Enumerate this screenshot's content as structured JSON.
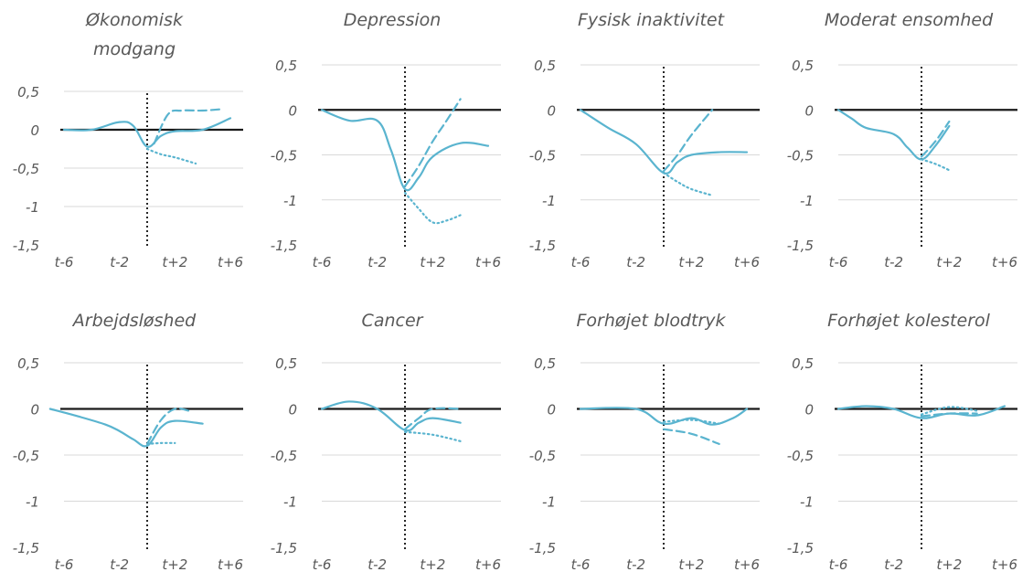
{
  "chart_data": [
    {
      "type": "line",
      "title": [
        "Økonomisk",
        "modgang"
      ],
      "x_tick_labels": [
        "t-6",
        "t-2",
        "t+2",
        "t+6"
      ],
      "y_tick_labels": [
        "0,5",
        "0",
        "-0,5",
        "-1",
        "-1,5"
      ],
      "ylim": [
        -1.5,
        0.5
      ],
      "xlim": [
        -6,
        6
      ],
      "event_x": 0,
      "series": [
        {
          "style": "solid",
          "points": [
            [
              -6,
              0
            ],
            [
              -4,
              0
            ],
            [
              -2,
              0.1
            ],
            [
              -1,
              0.05
            ],
            [
              0,
              -0.22
            ],
            [
              1,
              -0.08
            ],
            [
              2,
              -0.02
            ],
            [
              4,
              0
            ],
            [
              6,
              0.15
            ]
          ]
        },
        {
          "style": "dashed",
          "points": [
            [
              0.5,
              -0.18
            ],
            [
              1.5,
              0.2
            ],
            [
              2.5,
              0.25
            ],
            [
              4,
              0.25
            ],
            [
              5.5,
              0.27
            ]
          ]
        },
        {
          "style": "dotted",
          "points": [
            [
              0,
              -0.25
            ],
            [
              1,
              -0.32
            ],
            [
              2,
              -0.36
            ],
            [
              3.5,
              -0.44
            ]
          ]
        }
      ]
    },
    {
      "type": "line",
      "title": [
        "Depression"
      ],
      "x_tick_labels": [
        "t-6",
        "t-2",
        "t+2",
        "t+6"
      ],
      "y_tick_labels": [
        "0,5",
        "0",
        "-0,5",
        "-1",
        "-1,5"
      ],
      "ylim": [
        -1.5,
        0.5
      ],
      "xlim": [
        -6,
        6
      ],
      "event_x": 0,
      "series": [
        {
          "style": "solid",
          "points": [
            [
              -6,
              0
            ],
            [
              -4,
              -0.12
            ],
            [
              -2,
              -0.12
            ],
            [
              -1,
              -0.45
            ],
            [
              0,
              -0.88
            ],
            [
              1,
              -0.75
            ],
            [
              2,
              -0.52
            ],
            [
              4,
              -0.37
            ],
            [
              6,
              -0.4
            ]
          ]
        },
        {
          "style": "dashed",
          "points": [
            [
              0,
              -0.85
            ],
            [
              1,
              -0.62
            ],
            [
              2,
              -0.35
            ],
            [
              3,
              -0.12
            ],
            [
              4,
              0.12
            ]
          ]
        },
        {
          "style": "dotted",
          "points": [
            [
              0,
              -0.92
            ],
            [
              1,
              -1.1
            ],
            [
              2,
              -1.25
            ],
            [
              3,
              -1.23
            ],
            [
              4,
              -1.17
            ]
          ]
        }
      ]
    },
    {
      "type": "line",
      "title": [
        "Fysisk inaktivitet"
      ],
      "x_tick_labels": [
        "t-6",
        "t-2",
        "t+2",
        "t+6"
      ],
      "y_tick_labels": [
        "0,5",
        "0",
        "-0,5",
        "-1",
        "-1,5"
      ],
      "ylim": [
        -1.5,
        0.5
      ],
      "xlim": [
        -6,
        6
      ],
      "event_x": 0,
      "series": [
        {
          "style": "solid",
          "points": [
            [
              -6,
              0
            ],
            [
              -4,
              -0.2
            ],
            [
              -2,
              -0.38
            ],
            [
              0,
              -0.7
            ],
            [
              1,
              -0.58
            ],
            [
              2,
              -0.5
            ],
            [
              4,
              -0.47
            ],
            [
              6,
              -0.47
            ]
          ]
        },
        {
          "style": "dashed",
          "points": [
            [
              0,
              -0.68
            ],
            [
              1,
              -0.5
            ],
            [
              2,
              -0.28
            ],
            [
              3.5,
              0
            ]
          ]
        },
        {
          "style": "dotted",
          "points": [
            [
              0,
              -0.7
            ],
            [
              1,
              -0.8
            ],
            [
              2,
              -0.88
            ],
            [
              3.5,
              -0.95
            ]
          ]
        }
      ]
    },
    {
      "type": "line",
      "title": [
        "Moderat ensomhed"
      ],
      "x_tick_labels": [
        "t-6",
        "t-2",
        "t+2",
        "t+6"
      ],
      "y_tick_labels": [
        "0,5",
        "0",
        "-0,5",
        "-1",
        "-1,5"
      ],
      "ylim": [
        -1.5,
        0.5
      ],
      "xlim": [
        -6,
        6
      ],
      "event_x": 0,
      "series": [
        {
          "style": "solid",
          "points": [
            [
              -6,
              0
            ],
            [
              -5,
              -0.1
            ],
            [
              -4,
              -0.2
            ],
            [
              -2,
              -0.27
            ],
            [
              -1,
              -0.42
            ],
            [
              0,
              -0.55
            ],
            [
              1,
              -0.4
            ],
            [
              2,
              -0.18
            ]
          ]
        },
        {
          "style": "dashed",
          "points": [
            [
              0,
              -0.52
            ],
            [
              1,
              -0.35
            ],
            [
              2,
              -0.13
            ]
          ]
        },
        {
          "style": "dotted",
          "points": [
            [
              0,
              -0.55
            ],
            [
              1,
              -0.6
            ],
            [
              2,
              -0.67
            ]
          ]
        }
      ]
    },
    {
      "type": "line",
      "title": [
        "Arbejdsløshed"
      ],
      "x_tick_labels": [
        "t-6",
        "t-2",
        "t+2",
        "t+6"
      ],
      "y_tick_labels": [
        "0,5",
        "0",
        "-0,5",
        "-1",
        "-1,5"
      ],
      "ylim": [
        -1.5,
        0.5
      ],
      "xlim": [
        -6,
        6
      ],
      "event_x": 0,
      "series": [
        {
          "style": "solid",
          "points": [
            [
              -7,
              0
            ],
            [
              -5,
              -0.08
            ],
            [
              -3,
              -0.17
            ],
            [
              -2,
              -0.24
            ],
            [
              -1,
              -0.33
            ],
            [
              0,
              -0.4
            ],
            [
              1,
              -0.2
            ],
            [
              2,
              -0.13
            ],
            [
              4,
              -0.16
            ]
          ]
        },
        {
          "style": "dashed",
          "points": [
            [
              0,
              -0.38
            ],
            [
              1,
              -0.12
            ],
            [
              2,
              0
            ],
            [
              3,
              -0.02
            ]
          ]
        },
        {
          "style": "dotted",
          "points": [
            [
              0,
              -0.38
            ],
            [
              1,
              -0.37
            ],
            [
              2,
              -0.37
            ]
          ]
        }
      ]
    },
    {
      "type": "line",
      "title": [
        "Cancer"
      ],
      "x_tick_labels": [
        "t-6",
        "t-2",
        "t+2",
        "t+6"
      ],
      "y_tick_labels": [
        "0,5",
        "0",
        "-0,5",
        "-1",
        "-1,5"
      ],
      "ylim": [
        -1.5,
        0.5
      ],
      "xlim": [
        -6,
        6
      ],
      "event_x": 0,
      "series": [
        {
          "style": "solid",
          "points": [
            [
              -6,
              0
            ],
            [
              -4,
              0.08
            ],
            [
              -2,
              0
            ],
            [
              0,
              -0.23
            ],
            [
              1,
              -0.15
            ],
            [
              2,
              -0.1
            ],
            [
              4,
              -0.15
            ]
          ]
        },
        {
          "style": "dashed",
          "points": [
            [
              0,
              -0.22
            ],
            [
              1,
              -0.1
            ],
            [
              2,
              0
            ],
            [
              4,
              0
            ]
          ]
        },
        {
          "style": "dotted",
          "points": [
            [
              0,
              -0.25
            ],
            [
              2,
              -0.28
            ],
            [
              4,
              -0.35
            ]
          ]
        }
      ]
    },
    {
      "type": "line",
      "title": [
        "Forhøjet blodtryk"
      ],
      "x_tick_labels": [
        "t-6",
        "t-2",
        "t+2",
        "t+6"
      ],
      "y_tick_labels": [
        "0,5",
        "0",
        "-0,5",
        "-1",
        "-1,5"
      ],
      "ylim": [
        -1.5,
        0.5
      ],
      "xlim": [
        -6,
        6
      ],
      "event_x": 0,
      "series": [
        {
          "style": "solid",
          "points": [
            [
              -6,
              0
            ],
            [
              -2,
              0
            ],
            [
              0,
              -0.16
            ],
            [
              2,
              -0.1
            ],
            [
              3.5,
              -0.17
            ],
            [
              5,
              -0.1
            ],
            [
              6,
              0
            ]
          ]
        },
        {
          "style": "dashed",
          "points": [
            [
              0,
              -0.22
            ],
            [
              2,
              -0.27
            ],
            [
              4,
              -0.38
            ]
          ]
        },
        {
          "style": "dotted",
          "points": [
            [
              0,
              -0.14
            ],
            [
              2,
              -0.12
            ],
            [
              4,
              -0.16
            ]
          ]
        }
      ]
    },
    {
      "type": "line",
      "title": [
        "Forhøjet kolesterol"
      ],
      "x_tick_labels": [
        "t-6",
        "t-2",
        "t+2",
        "t+6"
      ],
      "y_tick_labels": [
        "0,5",
        "0",
        "-0,5",
        "-1",
        "-1,5"
      ],
      "ylim": [
        -1.5,
        0.5
      ],
      "xlim": [
        -6,
        6
      ],
      "event_x": 0,
      "series": [
        {
          "style": "solid",
          "points": [
            [
              -6,
              0
            ],
            [
              -4,
              0.03
            ],
            [
              -2,
              0
            ],
            [
              0,
              -0.1
            ],
            [
              2,
              -0.05
            ],
            [
              4,
              -0.07
            ],
            [
              6,
              0.03
            ]
          ]
        },
        {
          "style": "dashed",
          "points": [
            [
              0,
              -0.08
            ],
            [
              2,
              -0.05
            ],
            [
              4,
              -0.05
            ]
          ]
        },
        {
          "style": "dotted",
          "points": [
            [
              0,
              -0.06
            ],
            [
              2,
              0.02
            ],
            [
              4,
              -0.02
            ]
          ]
        }
      ]
    }
  ],
  "colors": {
    "series": "#5ab4cf",
    "zero_line": "#1a1a1a",
    "event_line": "#262626",
    "gridline": "#d9d9d9",
    "text": "#595959"
  }
}
